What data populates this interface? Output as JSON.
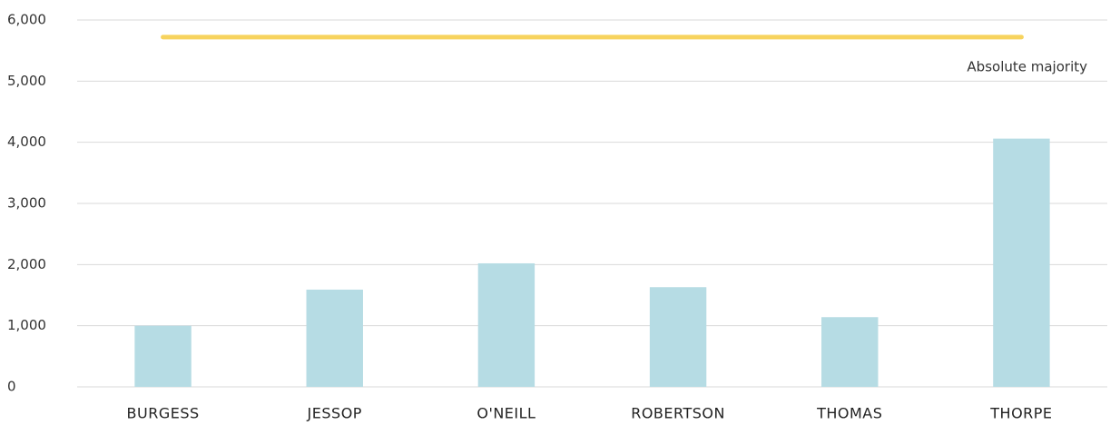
{
  "chart_data": {
    "type": "bar",
    "categories": [
      "BURGESS",
      "JESSOP",
      "O'NEILL",
      "ROBERTSON",
      "THOMAS",
      "THORPE"
    ],
    "values": [
      1000,
      1590,
      2020,
      1630,
      1140,
      4060
    ],
    "color": "#b6dce4",
    "ylim": [
      0,
      6000
    ],
    "yticks": [
      0,
      {
        "value": 1000,
        "label": "1,000"
      },
      {
        "value": 2000,
        "label": "2,000"
      },
      {
        "value": 3000,
        "label": "3,000"
      },
      {
        "value": 4000,
        "label": "4,000"
      },
      {
        "value": 5000,
        "label": "5,000"
      },
      {
        "value": 6000,
        "label": "6,000"
      }
    ],
    "grid": true,
    "reference_line": {
      "label": "Absolute majority",
      "value": 5720,
      "color": "#f7d35e"
    }
  }
}
